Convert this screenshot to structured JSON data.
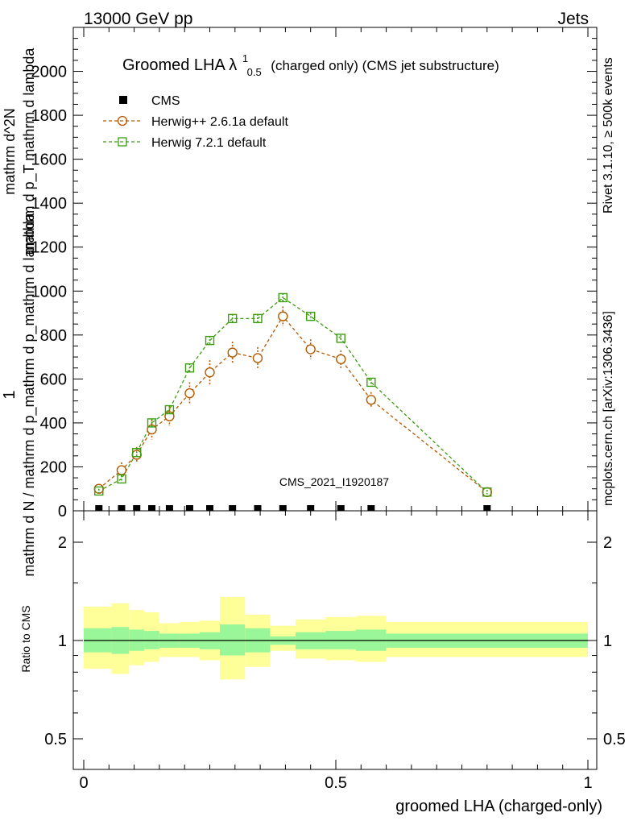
{
  "header": {
    "left": "13000 GeV pp",
    "right": "Jets"
  },
  "side_labels": {
    "rivet": "Rivet 3.1.10, ≥ 500k events",
    "mcplots": "mcplots.cern.ch [arXiv:1306.3436]"
  },
  "chart_data": {
    "type": "line",
    "title": "Groomed LHA λ",
    "title_sup": "1",
    "title_sub": "0.5",
    "title_rest": " (charged only) (CMS jet substructure)",
    "watermark": "CMS_2021_I1920187",
    "ylabel_top": "1",
    "ylabel_bottom": "mathrm d N / mathrm d p_mathrm d p_mathrm d lambda",
    "ylabel_num_top": "mathrm d^2N",
    "ylabel_num_bottom": "mathrm d p_T mathrm d lambda",
    "ylim": [
      0,
      2200
    ],
    "yticks": [
      0,
      200,
      400,
      600,
      800,
      1000,
      1200,
      1400,
      1600,
      1800,
      2000
    ],
    "ytick_labels": [
      "0",
      "200",
      "400",
      "600",
      "800",
      "1000",
      "1200",
      "1400",
      "1600",
      "1800",
      "2000"
    ],
    "xlim": [
      -0.02,
      1.02
    ],
    "xticks": [
      0,
      0.5,
      1
    ],
    "xtick_labels": [
      "0",
      "0.5",
      "1"
    ],
    "xlabel": "groomed LHA (charged-only)",
    "legend": [
      "CMS",
      "Herwig++ 2.6.1a default",
      "Herwig 7.2.1 default"
    ],
    "colors": {
      "cms": "#000000",
      "herwigpp": "#b35900",
      "herwig7": "#3c9d10",
      "band_inner": "#99f799",
      "band_outer": "#ffff99"
    },
    "x": [
      0.03,
      0.075,
      0.105,
      0.135,
      0.17,
      0.21,
      0.25,
      0.295,
      0.345,
      0.395,
      0.45,
      0.51,
      0.57,
      0.8
    ],
    "series": [
      {
        "name": "CMS",
        "values": [
          3,
          3,
          3,
          3,
          3,
          3,
          3,
          3,
          3,
          3,
          3,
          3,
          3,
          3
        ]
      },
      {
        "name": "Herwig++ 2.6.1a default",
        "values": [
          100,
          185,
          255,
          370,
          430,
          535,
          630,
          720,
          695,
          885,
          735,
          690,
          505,
          85
        ],
        "errors": [
          15,
          35,
          35,
          45,
          45,
          50,
          55,
          50,
          50,
          45,
          45,
          40,
          35,
          15
        ]
      },
      {
        "name": "Herwig 7.2.1 default",
        "values": [
          90,
          145,
          265,
          400,
          460,
          650,
          775,
          875,
          875,
          970,
          885,
          785,
          585,
          85
        ],
        "errors": [
          10,
          15,
          20,
          20,
          20,
          20,
          20,
          20,
          20,
          20,
          15,
          15,
          15,
          10
        ]
      }
    ],
    "ratio": {
      "ylabel": "Ratio to CMS",
      "yticks": [
        0.5,
        1,
        2
      ],
      "ytick_labels": [
        "0.5",
        "1",
        "2"
      ],
      "bins": [
        [
          0.0,
          0.055,
          0.92,
          1.09,
          0.82,
          1.27
        ],
        [
          0.055,
          0.09,
          0.91,
          1.1,
          0.79,
          1.3
        ],
        [
          0.09,
          0.12,
          0.93,
          1.08,
          0.84,
          1.24
        ],
        [
          0.12,
          0.15,
          0.94,
          1.07,
          0.86,
          1.22
        ],
        [
          0.15,
          0.19,
          0.95,
          1.05,
          0.89,
          1.13
        ],
        [
          0.19,
          0.23,
          0.95,
          1.05,
          0.89,
          1.14
        ],
        [
          0.23,
          0.27,
          0.94,
          1.06,
          0.87,
          1.15
        ],
        [
          0.27,
          0.32,
          0.9,
          1.12,
          0.76,
          1.36
        ],
        [
          0.32,
          0.37,
          0.92,
          1.09,
          0.83,
          1.2
        ],
        [
          0.37,
          0.42,
          0.97,
          1.03,
          0.93,
          1.11
        ],
        [
          0.42,
          0.48,
          0.94,
          1.06,
          0.88,
          1.16
        ],
        [
          0.48,
          0.54,
          0.94,
          1.07,
          0.87,
          1.18
        ],
        [
          0.54,
          0.6,
          0.93,
          1.08,
          0.86,
          1.19
        ],
        [
          0.6,
          1.0,
          0.95,
          1.05,
          0.89,
          1.14
        ]
      ]
    }
  }
}
